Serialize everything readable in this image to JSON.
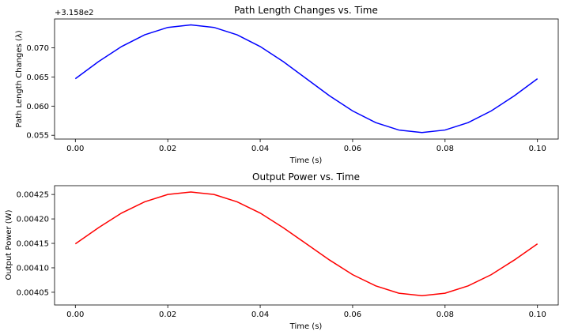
{
  "chart_data": [
    {
      "type": "line",
      "title": "Path Length Changes vs. Time",
      "xlabel": "Time (s)",
      "ylabel": "Path Length Changes (λ)",
      "y_offset_label": "+3.158e2",
      "xlim": [
        -0.0045,
        0.1045
      ],
      "ylim": [
        0.05435,
        0.07495
      ],
      "x_ticks": [
        0.0,
        0.02,
        0.04,
        0.06,
        0.08,
        0.1
      ],
      "x_tick_labels": [
        "0.00",
        "0.02",
        "0.04",
        "0.06",
        "0.08",
        "0.10"
      ],
      "y_ticks": [
        0.055,
        0.06,
        0.065,
        0.07
      ],
      "y_tick_labels": [
        "0.055",
        "0.060",
        "0.065",
        "0.070"
      ],
      "grid": false,
      "series": [
        {
          "color": "#0000ff",
          "x": [
            0.0,
            0.005,
            0.01,
            0.015,
            0.02,
            0.025,
            0.03,
            0.035,
            0.04,
            0.045,
            0.05,
            0.055,
            0.06,
            0.065,
            0.07,
            0.075,
            0.08,
            0.085,
            0.09,
            0.095,
            0.1
          ],
          "y": [
            0.0647,
            0.06763,
            0.07022,
            0.07223,
            0.0735,
            0.07393,
            0.0735,
            0.07223,
            0.07022,
            0.06763,
            0.0647,
            0.06177,
            0.05918,
            0.05717,
            0.0559,
            0.05547,
            0.0559,
            0.05717,
            0.05918,
            0.06177,
            0.0647
          ]
        }
      ]
    },
    {
      "type": "line",
      "title": "Output Power vs. Time",
      "xlabel": "Time (s)",
      "ylabel": "Output Power (W)",
      "xlim": [
        -0.0045,
        0.1045
      ],
      "ylim": [
        0.004024,
        0.004268
      ],
      "x_ticks": [
        0.0,
        0.02,
        0.04,
        0.06,
        0.08,
        0.1
      ],
      "x_tick_labels": [
        "0.00",
        "0.02",
        "0.04",
        "0.06",
        "0.08",
        "0.10"
      ],
      "y_ticks": [
        0.00405,
        0.0041,
        0.00415,
        0.0042,
        0.00425
      ],
      "y_tick_labels": [
        "0.00405",
        "0.00410",
        "0.00415",
        "0.00420",
        "0.00425"
      ],
      "grid": false,
      "series": [
        {
          "color": "#ff0000",
          "x": [
            0.0,
            0.005,
            0.01,
            0.015,
            0.02,
            0.025,
            0.03,
            0.035,
            0.04,
            0.045,
            0.05,
            0.055,
            0.06,
            0.065,
            0.07,
            0.075,
            0.08,
            0.085,
            0.09,
            0.095,
            0.1
          ],
          "y": [
            0.004149,
            0.004182,
            0.004212,
            0.004235,
            0.00425,
            0.004255,
            0.00425,
            0.004235,
            0.004212,
            0.004182,
            0.004149,
            0.004116,
            0.004086,
            0.004063,
            0.004048,
            0.004043,
            0.004048,
            0.004063,
            0.004086,
            0.004116,
            0.004149
          ]
        }
      ]
    }
  ]
}
